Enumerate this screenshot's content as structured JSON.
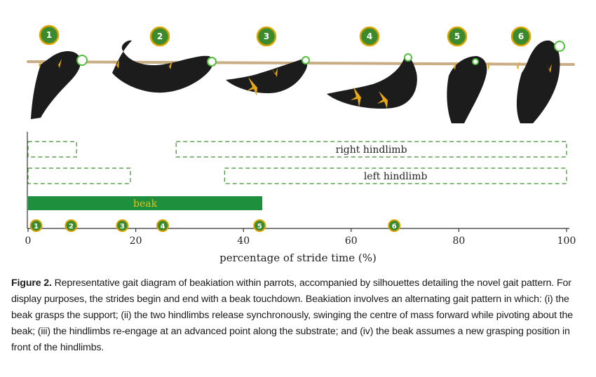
{
  "figure": {
    "stages": [
      "1",
      "2",
      "3",
      "4",
      "5",
      "6"
    ],
    "colors": {
      "badge_fill": "#3b8a2e",
      "badge_ring": "#d9a400",
      "beak_bar": "#1e8f3c",
      "box_stroke": "#3e8f2f",
      "silhouette": "#1c1c1c",
      "foot": "#e6a817"
    }
  },
  "chart_data": {
    "type": "gait-diagram",
    "xlabel": "percentage of stride time (%)",
    "xlim": [
      0,
      100
    ],
    "x_ticks": [
      "0",
      "20",
      "40",
      "60",
      "80",
      "100"
    ],
    "tick_values": [
      0,
      20,
      40,
      60,
      80,
      100
    ],
    "rows": [
      {
        "label": "right hindlimb",
        "style": "dashed-outline",
        "intervals": [
          [
            0,
            9
          ],
          [
            27.5,
            100
          ]
        ]
      },
      {
        "label": "left hindlimb",
        "style": "dashed-outline",
        "intervals": [
          [
            0,
            19
          ],
          [
            36.5,
            100
          ]
        ]
      },
      {
        "label": "beak",
        "style": "solid",
        "intervals": [
          [
            0,
            43.5
          ]
        ]
      }
    ],
    "events": [
      {
        "label": "1",
        "x": 1.5
      },
      {
        "label": "2",
        "x": 8
      },
      {
        "label": "3",
        "x": 17.5
      },
      {
        "label": "4",
        "x": 25
      },
      {
        "label": "5",
        "x": 43
      },
      {
        "label": "6",
        "x": 68
      }
    ]
  },
  "caption": {
    "label": "Figure 2.",
    "text": " Representative gait diagram of beakiation within parrots, accompanied by silhouettes detailing the novel gait pattern. For display purposes, the strides begin and end with a beak touchdown. Beakiation involves an alternating gait pattern in which: (i) the beak grasps the support; (ii) the two hindlimbs release synchronously, swinging the centre of mass forward while pivoting about the beak; (iii) the hindlimbs re-engage at an advanced point along the substrate; and (iv) the beak assumes a new grasping position in front of the hindlimbs."
  }
}
